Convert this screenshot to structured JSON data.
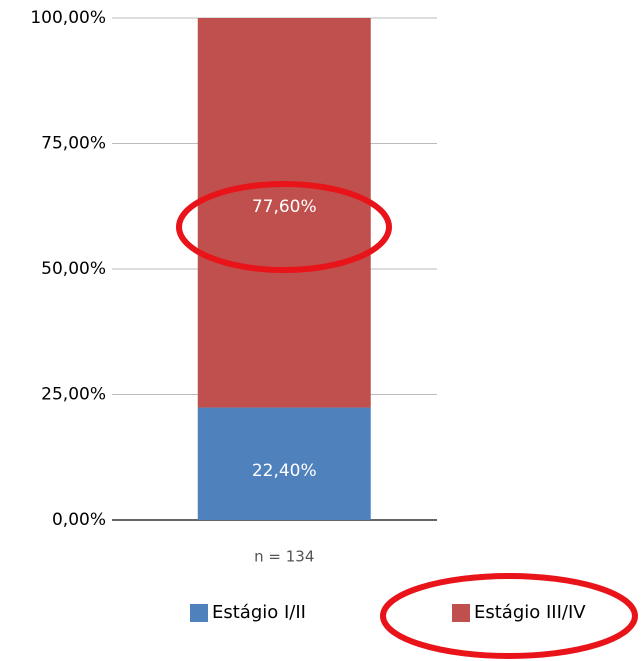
{
  "chart_data": {
    "type": "stacked_bar",
    "categories": [
      "n = 134"
    ],
    "series": [
      {
        "name": "Estágio I/II",
        "color": "#4f81bd",
        "values": [
          22.4
        ],
        "value_labels": [
          "22,40%"
        ]
      },
      {
        "name": "Estágio III/IV",
        "color": "#c0504d",
        "values": [
          77.6
        ],
        "value_labels": [
          "77,60%"
        ]
      }
    ],
    "ylim": [
      0,
      100
    ],
    "yticks": [
      {
        "value": 0,
        "label": "0,00%"
      },
      {
        "value": 25,
        "label": "25,00%"
      },
      {
        "value": 50,
        "label": "50,00%"
      },
      {
        "value": 75,
        "label": "75,00%"
      },
      {
        "value": 100,
        "label": "100,00%"
      }
    ],
    "grid": true,
    "legend": "bottom"
  }
}
